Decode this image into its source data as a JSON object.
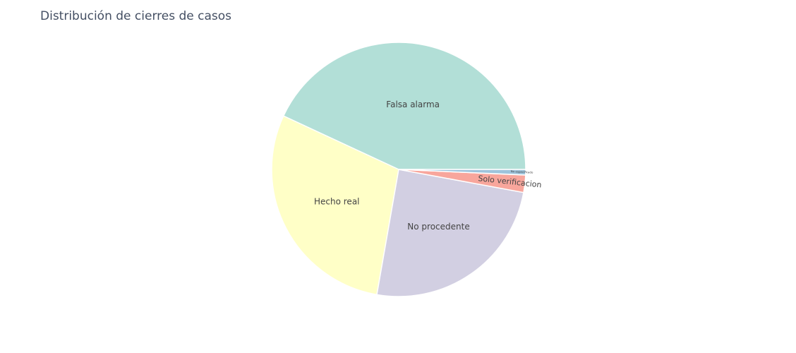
{
  "chart_data": {
    "type": "pie",
    "title": "Distribución de cierres de casos",
    "categories": [
      "Falsa alarma",
      "Hecho real",
      "No procedente",
      "Solo verificacion",
      "No especificado"
    ],
    "values": [
      43.0,
      29.1,
      24.8,
      2.2,
      0.7
    ],
    "colors": [
      "#b2dfd7",
      "#ffffc7",
      "#d2cfe2",
      "#f8a69c",
      "#9ec4dc"
    ],
    "start_angle_deg": 90,
    "direction": "counterclockwise"
  }
}
